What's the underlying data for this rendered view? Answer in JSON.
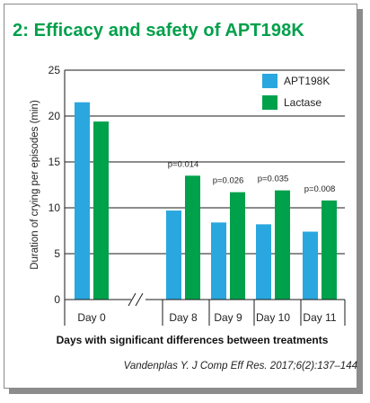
{
  "title": "2: Efficacy and safety of APT198K",
  "source": "Vandenplas Y. J Comp Eff Res. 2017;6(2):137–144",
  "colors": {
    "title": "#00a04a",
    "apt198k": "#2aa7df",
    "lactase": "#00a14b"
  },
  "chart_data": {
    "type": "bar",
    "xlabel": "Days with significant differences between treatments",
    "ylabel": "Duration of crying per episodes (min)",
    "ylim": [
      0,
      25
    ],
    "yticks": [
      0,
      5,
      10,
      15,
      20,
      25
    ],
    "grid": true,
    "axis_break": "between Day 0 and Day 8",
    "legend": "top-right",
    "categories": [
      "Day 0",
      "Day 8",
      "Day 9",
      "Day 10",
      "Day 11"
    ],
    "series": [
      {
        "name": "APT198K",
        "color": "#2aa7df",
        "values": [
          21.5,
          9.7,
          8.4,
          8.2,
          7.4
        ]
      },
      {
        "name": "Lactase",
        "color": "#00a14b",
        "values": [
          19.4,
          13.5,
          11.7,
          11.9,
          10.8
        ]
      }
    ],
    "annotations": [
      "",
      "p=0.014",
      "p=0.026",
      "p=0.035",
      "p=0.008"
    ]
  }
}
